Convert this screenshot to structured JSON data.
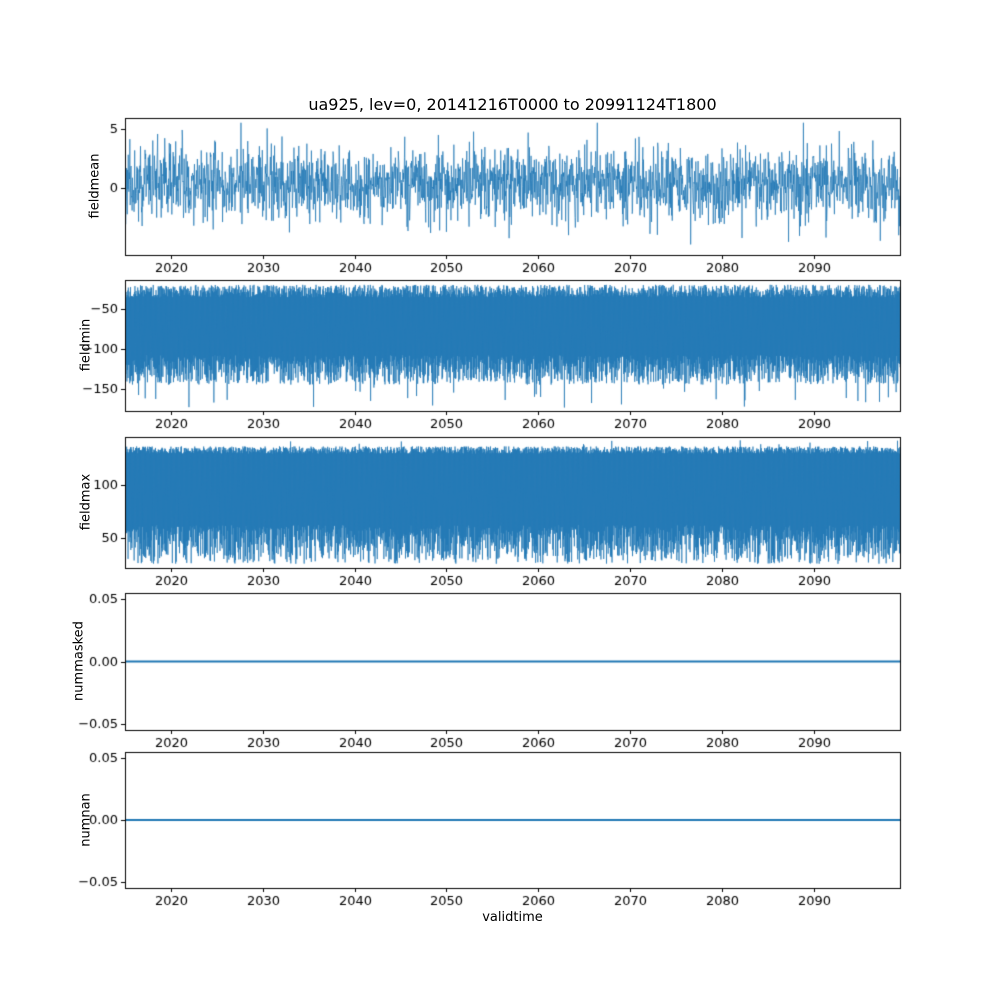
{
  "figure": {
    "title": "ua925, lev=0, 20141216T0000 to 20991124T1800",
    "xlabel": "validtime",
    "background": "#ffffff",
    "line_color": "#1f77b4",
    "axis_color": "#000000",
    "x_range": [
      2015.0,
      2099.4
    ],
    "x_ticks": [
      2020,
      2030,
      2040,
      2050,
      2060,
      2070,
      2080,
      2090
    ],
    "x_tick_labels": [
      "2020",
      "2030",
      "2040",
      "2050",
      "2060",
      "2070",
      "2080",
      "2090"
    ]
  },
  "chart_data": [
    {
      "type": "line",
      "name": "fieldmean",
      "ylabel": "fieldmean",
      "ylim": [
        -5.6,
        5.9
      ],
      "yticks": [
        0,
        5
      ],
      "ytick_labels": [
        "0",
        "5"
      ],
      "pattern": "noise",
      "stats": {
        "mean": 0.4,
        "std": 1.55,
        "min": -5.3,
        "max": 5.5
      },
      "points": 2400,
      "seed": 11
    },
    {
      "type": "line",
      "name": "fieldmin",
      "ylabel": "fieldmin",
      "ylim": [
        -178,
        -14
      ],
      "yticks": [
        -150,
        -100,
        -50
      ],
      "ytick_labels": [
        "−150",
        "−100",
        "−50"
      ],
      "pattern": "band",
      "stats": {
        "upper": [
          -36,
          -20
        ],
        "lower": [
          -145,
          -108
        ],
        "lower_spike": [
          -174,
          -148
        ],
        "spike_prob": 0.02
      },
      "points": 2800,
      "seed": 22
    },
    {
      "type": "line",
      "name": "fieldmax",
      "ylabel": "fieldmax",
      "ylim": [
        21,
        146
      ],
      "yticks": [
        50,
        100
      ],
      "ytick_labels": [
        "50",
        "100"
      ],
      "pattern": "band",
      "stats": {
        "upper": [
          130,
          137
        ],
        "lower": [
          25,
          62
        ],
        "upper_spike": [
          137,
          143
        ],
        "spike_prob": 0.012
      },
      "points": 2800,
      "seed": 33
    },
    {
      "type": "line",
      "name": "nummasked",
      "ylabel": "nummasked",
      "ylim": [
        -0.055,
        0.055
      ],
      "yticks": [
        -0.05,
        0.0,
        0.05
      ],
      "ytick_labels": [
        "−0.05",
        "0.00",
        "0.05"
      ],
      "pattern": "flat",
      "value": 0.0,
      "points": 2,
      "seed": 44
    },
    {
      "type": "line",
      "name": "numnan",
      "ylabel": "numnan",
      "ylim": [
        -0.055,
        0.055
      ],
      "yticks": [
        -0.05,
        0.0,
        0.05
      ],
      "ytick_labels": [
        "−0.05",
        "0.00",
        "0.05"
      ],
      "pattern": "flat",
      "value": 0.0,
      "points": 2,
      "seed": 55
    }
  ]
}
